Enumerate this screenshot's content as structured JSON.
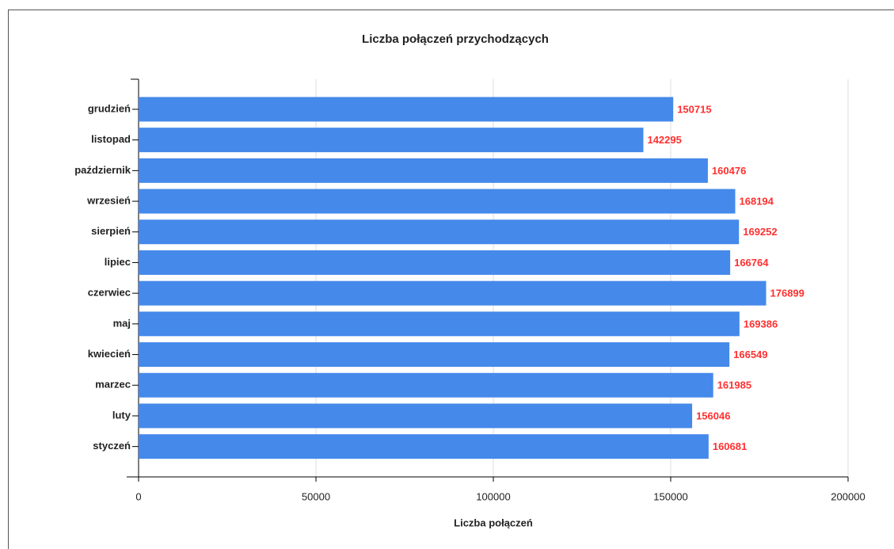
{
  "chart_data": {
    "type": "barh",
    "title": "Liczba połączeń przychodzących",
    "x_label": "Liczba połączeń",
    "categories": [
      "grudzień",
      "listopad",
      "październik",
      "wrzesień",
      "sierpień",
      "lipiec",
      "czerwiec",
      "maj",
      "kwiecień",
      "marzec",
      "luty",
      "styczeń"
    ],
    "values": [
      150715,
      142295,
      160476,
      168194,
      169252,
      166764,
      176899,
      169386,
      166549,
      161985,
      156046,
      160681
    ],
    "color": "#4589ea",
    "label_color": "#ff3030",
    "xlim": [
      0,
      200000
    ],
    "xticks": [
      0,
      50000,
      100000,
      150000,
      200000
    ],
    "grid": true
  }
}
